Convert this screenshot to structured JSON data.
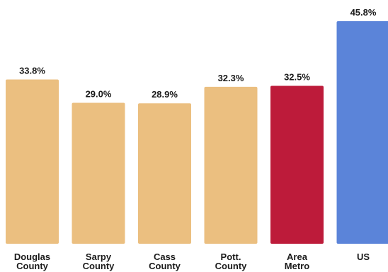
{
  "chart_data": {
    "type": "bar",
    "categories": [
      [
        "Douglas",
        "County"
      ],
      [
        "Sarpy",
        "County"
      ],
      [
        "Cass",
        "County"
      ],
      [
        "Pott.",
        "County"
      ],
      [
        "Area",
        "Metro"
      ],
      [
        "US"
      ]
    ],
    "values": [
      33.8,
      29.0,
      28.9,
      32.3,
      32.5,
      45.8
    ],
    "value_labels": [
      "33.8%",
      "29.0%",
      "28.9%",
      "32.3%",
      "32.5%",
      "45.8%"
    ],
    "colors": [
      "#ebbf80",
      "#ebbf80",
      "#ebbf80",
      "#ebbf80",
      "#bd1b3a",
      "#5b84d9"
    ],
    "ylim": [
      0,
      45.8
    ],
    "grid": false,
    "legend": "none",
    "title": "",
    "xlabel": "",
    "ylabel": ""
  }
}
